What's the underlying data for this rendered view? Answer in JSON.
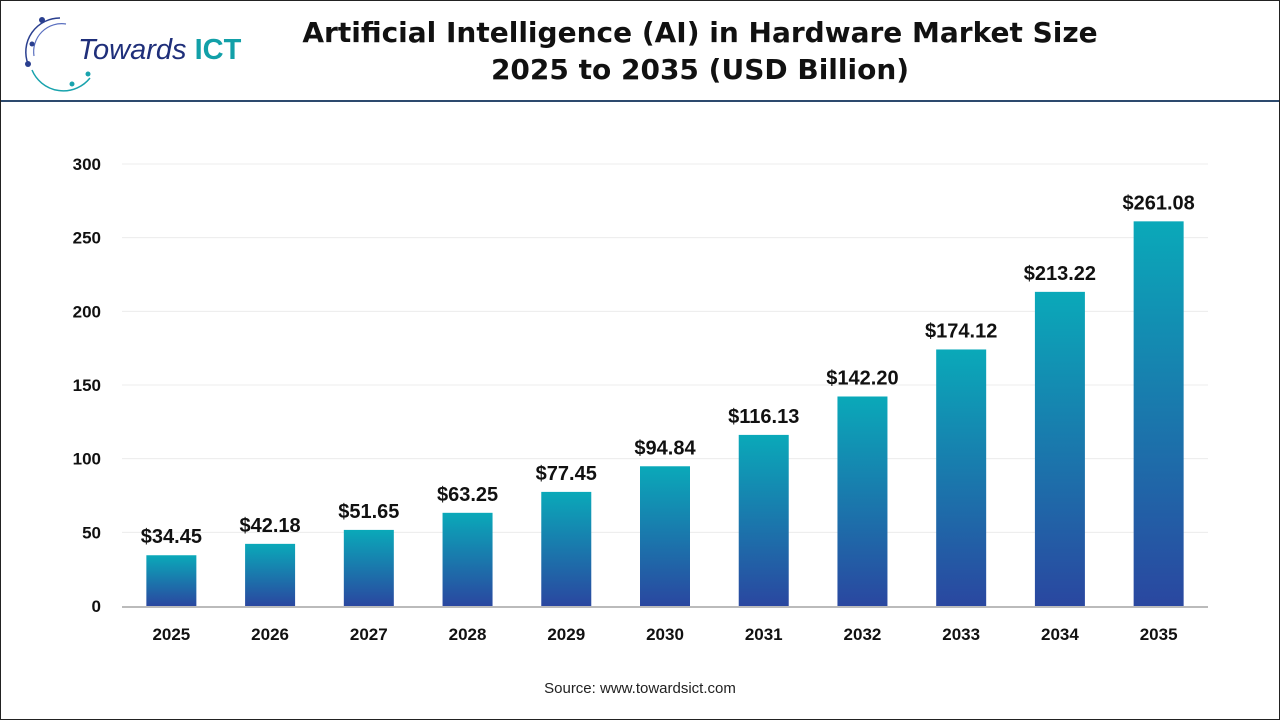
{
  "header": {
    "title": "Artificial Intelligence (AI) in Hardware Market Size 2025 to 2035 (USD Billion)",
    "logo": {
      "text_main": "Towards",
      "text_accent": "ICT"
    }
  },
  "footer": {
    "source": "Source: www.towardsict.com"
  },
  "colors": {
    "bar_top": "#0aa9b9",
    "bar_bottom": "#2a47a0",
    "title": "#111111",
    "header_rule": "#2d4a6e"
  },
  "chart_data": {
    "type": "bar",
    "title": "Artificial Intelligence (AI) in Hardware Market Size 2025 to 2035 (USD Billion)",
    "xlabel": "",
    "ylabel": "",
    "categories": [
      "2025",
      "2026",
      "2027",
      "2028",
      "2029",
      "2030",
      "2031",
      "2032",
      "2033",
      "2034",
      "2035"
    ],
    "values": [
      34.45,
      42.18,
      51.65,
      63.25,
      77.45,
      94.84,
      116.13,
      142.2,
      174.12,
      213.22,
      261.08
    ],
    "data_labels": [
      "$34.45",
      "$42.18",
      "$51.65",
      "$63.25",
      "$77.45",
      "$94.84",
      "$116.13",
      "$142.20",
      "$174.12",
      "$213.22",
      "$261.08"
    ],
    "ylim": [
      0,
      300
    ],
    "yticks": [
      "0",
      "50",
      "100",
      "150",
      "200",
      "250",
      "300"
    ],
    "grid": true,
    "legend": "none"
  }
}
